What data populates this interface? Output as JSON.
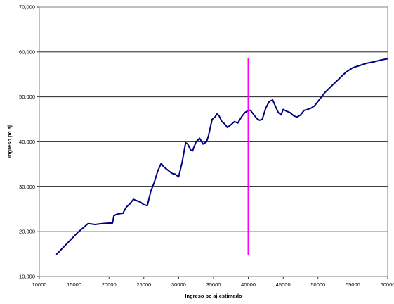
{
  "chart_data": {
    "type": "line",
    "title": "",
    "xlabel": "Ingreso pc aj estimado",
    "ylabel": "Ingreso pc aj",
    "xlim": [
      10000,
      60000
    ],
    "ylim": [
      10000,
      70000
    ],
    "x_ticks": [
      10000,
      15000,
      20000,
      25000,
      30000,
      35000,
      40000,
      45000,
      50000,
      55000,
      60000
    ],
    "x_tick_labels": [
      "10000",
      "15000",
      "20000",
      "25000",
      "30000",
      "35000",
      "40000",
      "45000",
      "50000",
      "55000",
      "60000"
    ],
    "y_ticks": [
      10000,
      20000,
      30000,
      40000,
      50000,
      60000,
      70000
    ],
    "y_tick_labels": [
      "10,000",
      "20,000",
      "30,000",
      "40,000",
      "50,000",
      "60,000",
      "70,000"
    ],
    "grid": "horizontal",
    "legend": "none",
    "series": [
      {
        "color": "#000080",
        "x": [
          12500,
          15500,
          17000,
          18000,
          19000,
          20000,
          20500,
          20700,
          21000,
          21500,
          22000,
          22500,
          23000,
          23500,
          23800,
          24500,
          25000,
          25500,
          26000,
          26500,
          27000,
          27500,
          27800,
          28200,
          28600,
          29000,
          29500,
          30000,
          30500,
          31000,
          31300,
          31700,
          32000,
          32500,
          33000,
          33500,
          34000,
          34300,
          34800,
          35200,
          35500,
          35800,
          36200,
          36600,
          37000,
          37500,
          38000,
          38500,
          39000,
          39500,
          40000,
          40300,
          40800,
          41200,
          41600,
          42000,
          42500,
          43000,
          43500,
          44000,
          44300,
          44700,
          45000,
          45500,
          46000,
          46500,
          47000,
          47500,
          48000,
          48500,
          49000,
          49500,
          50000,
          51000,
          52000,
          53000,
          54000,
          55000,
          56000,
          57000,
          58000,
          59000,
          60000
        ],
        "y": [
          15000,
          19800,
          21800,
          21600,
          21800,
          21900,
          21900,
          23500,
          23800,
          24000,
          24100,
          25500,
          26200,
          27200,
          27000,
          26600,
          26000,
          25800,
          29000,
          31000,
          33500,
          35200,
          34500,
          34000,
          33500,
          33000,
          32800,
          32200,
          35500,
          39800,
          39500,
          38200,
          38000,
          40000,
          40800,
          39500,
          40000,
          41500,
          45000,
          45500,
          46200,
          45800,
          44500,
          44000,
          43200,
          43800,
          44500,
          44200,
          45500,
          46500,
          47000,
          47000,
          46000,
          45200,
          44800,
          45000,
          47500,
          49000,
          49300,
          47500,
          46500,
          46000,
          47200,
          46800,
          46500,
          45800,
          45500,
          46000,
          47000,
          47200,
          47500,
          48000,
          49000,
          51000,
          52500,
          54000,
          55500,
          56500,
          57000,
          57500,
          57800,
          58200,
          58500
        ]
      },
      {
        "color": "#FF00FF",
        "x": [
          40000,
          40000
        ],
        "y": [
          15000,
          58500
        ]
      }
    ]
  }
}
